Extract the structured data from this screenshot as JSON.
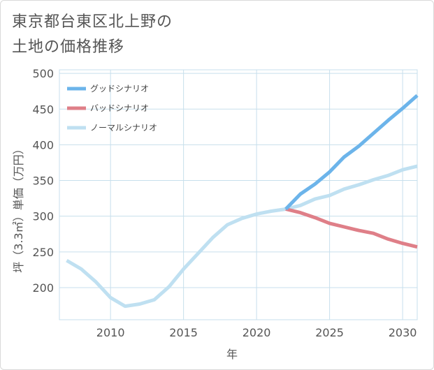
{
  "chart_data": {
    "type": "line",
    "title_line1": "東京都台東区北上野の",
    "title_line2": "土地の価格推移",
    "xlabel": "年",
    "ylabel": "坪（3.3㎡）単価（万円）",
    "xlim": [
      2006.5,
      2031
    ],
    "ylim": [
      155,
      505
    ],
    "x_ticks": [
      2010,
      2015,
      2020,
      2025,
      2030
    ],
    "y_ticks": [
      200,
      250,
      300,
      350,
      400,
      450,
      500
    ],
    "grid": true,
    "legend_position": "top-left",
    "series": [
      {
        "name": "グッドシナリオ",
        "color": "#6cb4ea",
        "x": [
          2022,
          2023,
          2024,
          2025,
          2026,
          2027,
          2028,
          2029,
          2030,
          2031
        ],
        "y": [
          310,
          331,
          345,
          362,
          383,
          398,
          416,
          434,
          451,
          469
        ]
      },
      {
        "name": "バッドシナリオ",
        "color": "#df7f88",
        "x": [
          2022,
          2023,
          2024,
          2025,
          2026,
          2027,
          2028,
          2029,
          2030,
          2031
        ],
        "y": [
          310,
          305,
          298,
          290,
          285,
          280,
          276,
          268,
          262,
          257
        ]
      },
      {
        "name": "ノーマルシナリオ",
        "color": "#bfe0f1",
        "x": [
          2007,
          2008,
          2009,
          2010,
          2011,
          2012,
          2013,
          2014,
          2015,
          2016,
          2017,
          2018,
          2019,
          2020,
          2021,
          2022,
          2023,
          2024,
          2025,
          2026,
          2027,
          2028,
          2029,
          2030,
          2031
        ],
        "y": [
          238,
          226,
          208,
          186,
          174,
          177,
          183,
          201,
          226,
          248,
          270,
          288,
          297,
          303,
          307,
          310,
          315,
          324,
          329,
          338,
          344,
          351,
          357,
          365,
          370
        ]
      }
    ]
  }
}
